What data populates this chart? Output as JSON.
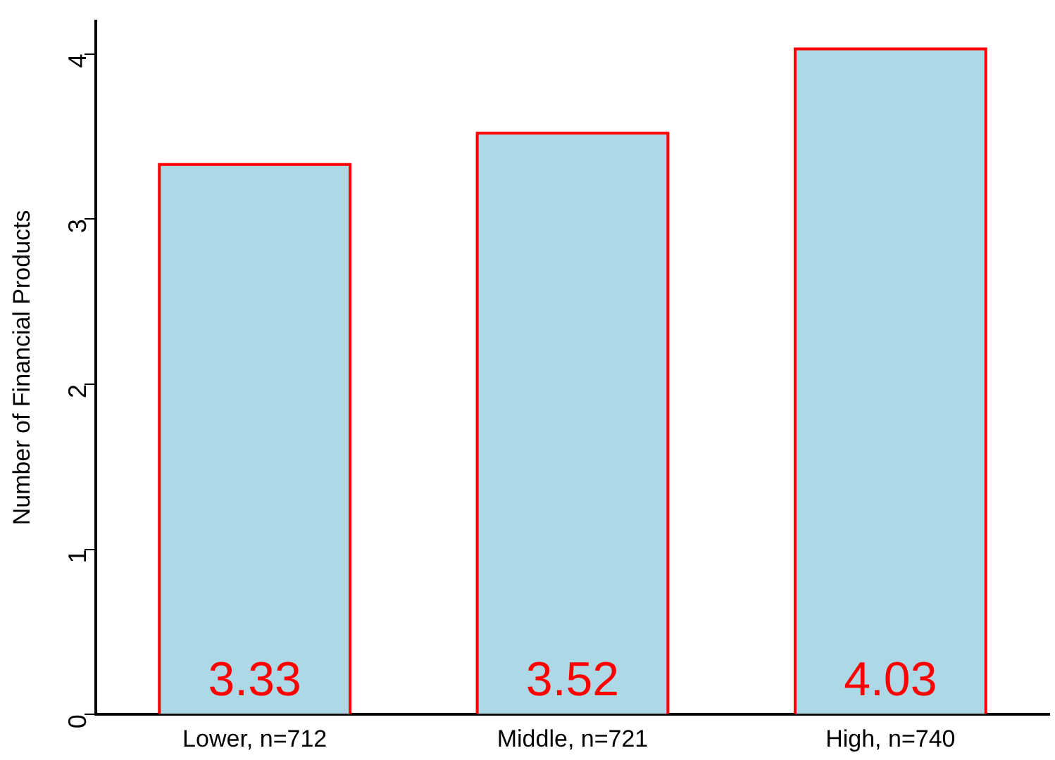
{
  "chart_data": {
    "type": "bar",
    "ylabel": "Number of Financial Products",
    "categories": [
      "Lower, n=712",
      "Middle, n=721",
      "High, n=740"
    ],
    "values": [
      3.33,
      3.52,
      4.03
    ],
    "color": "#add8e6",
    "ylim": [
      0,
      4.2
    ],
    "yticks": [
      0,
      1,
      2,
      3,
      4
    ],
    "grid": false,
    "legend": false,
    "data_labels": true
  }
}
